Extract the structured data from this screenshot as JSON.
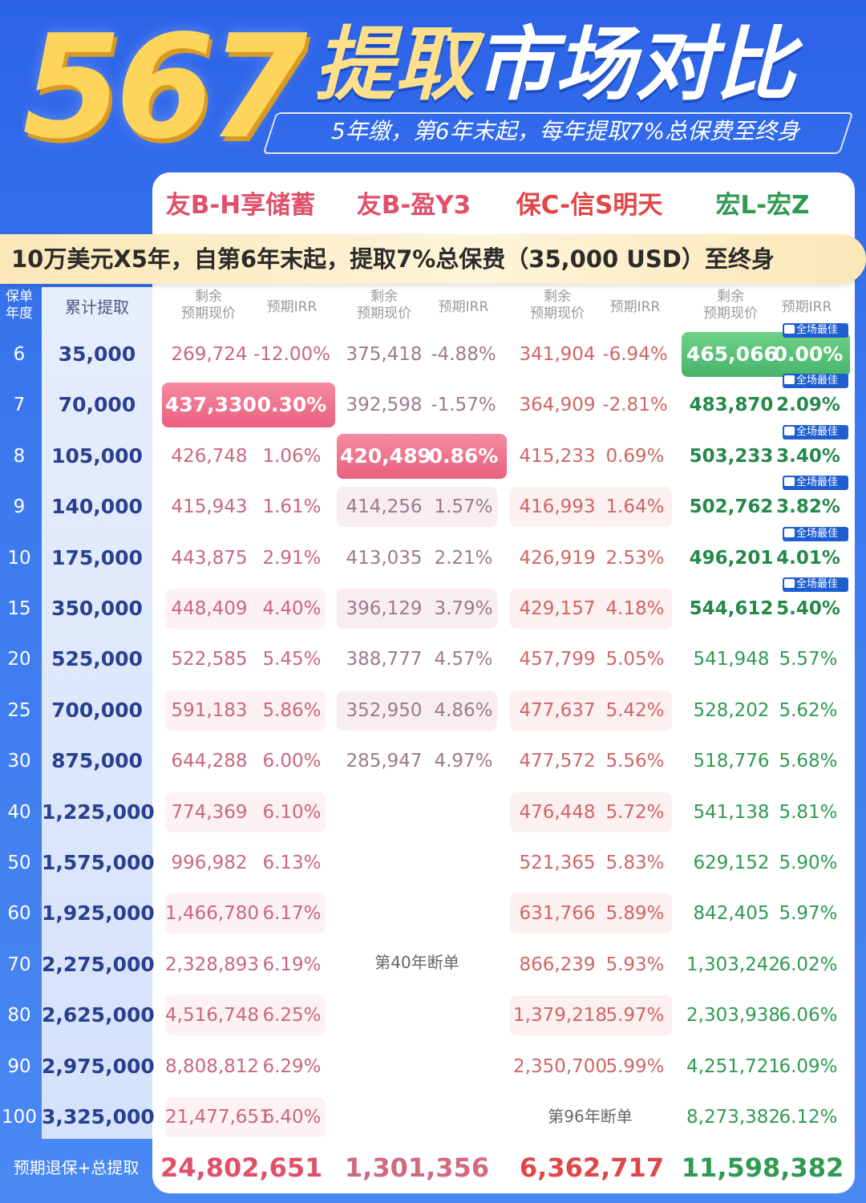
{
  "header": {
    "number": "567",
    "title_main": "提取",
    "title_rest": "市场对比",
    "subtitle": "5年缴，第6年末起，每年提取7%总保费至终身"
  },
  "products": [
    "友B-H享储蓄",
    "友B-盈Y3",
    "保C-信S明天",
    "宏L-宏Z"
  ],
  "banner": "10万美元X5年，自第6年末起，提取7%总保费（35,000 USD）至终身",
  "columns": {
    "year": "保单\n年度",
    "cumulative": "累计提取",
    "value": "剩余\n预期现价",
    "irr": "预期IRR"
  },
  "badge_label": "全场最佳",
  "rows": [
    {
      "year": "6",
      "cum": "35,000",
      "p1v": "269,724",
      "p1i": "-12.00%",
      "p2v": "375,418",
      "p2i": "-4.88%",
      "p3v": "341,904",
      "p3i": "-6.94%",
      "p4v": "465,066",
      "p4i": "0.00%"
    },
    {
      "year": "7",
      "cum": "70,000",
      "p1v": "437,330",
      "p1i": "0.30%",
      "p2v": "392,598",
      "p2i": "-1.57%",
      "p3v": "364,909",
      "p3i": "-2.81%",
      "p4v": "483,870",
      "p4i": "2.09%"
    },
    {
      "year": "8",
      "cum": "105,000",
      "p1v": "426,748",
      "p1i": "1.06%",
      "p2v": "420,489",
      "p2i": "0.86%",
      "p3v": "415,233",
      "p3i": "0.69%",
      "p4v": "503,233",
      "p4i": "3.40%"
    },
    {
      "year": "9",
      "cum": "140,000",
      "p1v": "415,943",
      "p1i": "1.61%",
      "p2v": "414,256",
      "p2i": "1.57%",
      "p3v": "416,993",
      "p3i": "1.64%",
      "p4v": "502,762",
      "p4i": "3.82%"
    },
    {
      "year": "10",
      "cum": "175,000",
      "p1v": "443,875",
      "p1i": "2.91%",
      "p2v": "413,035",
      "p2i": "2.21%",
      "p3v": "426,919",
      "p3i": "2.53%",
      "p4v": "496,201",
      "p4i": "4.01%"
    },
    {
      "year": "15",
      "cum": "350,000",
      "p1v": "448,409",
      "p1i": "4.40%",
      "p2v": "396,129",
      "p2i": "3.79%",
      "p3v": "429,157",
      "p3i": "4.18%",
      "p4v": "544,612",
      "p4i": "5.40%"
    },
    {
      "year": "20",
      "cum": "525,000",
      "p1v": "522,585",
      "p1i": "5.45%",
      "p2v": "388,777",
      "p2i": "4.57%",
      "p3v": "457,799",
      "p3i": "5.05%",
      "p4v": "541,948",
      "p4i": "5.57%"
    },
    {
      "year": "25",
      "cum": "700,000",
      "p1v": "591,183",
      "p1i": "5.86%",
      "p2v": "352,950",
      "p2i": "4.86%",
      "p3v": "477,637",
      "p3i": "5.42%",
      "p4v": "528,202",
      "p4i": "5.62%"
    },
    {
      "year": "30",
      "cum": "875,000",
      "p1v": "644,288",
      "p1i": "6.00%",
      "p2v": "285,947",
      "p2i": "4.97%",
      "p3v": "477,572",
      "p3i": "5.56%",
      "p4v": "518,776",
      "p4i": "5.68%"
    },
    {
      "year": "40",
      "cum": "1,225,000",
      "p1v": "774,369",
      "p1i": "6.10%",
      "p2v": "",
      "p2i": "",
      "p3v": "476,448",
      "p3i": "5.72%",
      "p4v": "541,138",
      "p4i": "5.81%"
    },
    {
      "year": "50",
      "cum": "1,575,000",
      "p1v": "996,982",
      "p1i": "6.13%",
      "p2v": "",
      "p2i": "",
      "p3v": "521,365",
      "p3i": "5.83%",
      "p4v": "629,152",
      "p4i": "5.90%"
    },
    {
      "year": "60",
      "cum": "1,925,000",
      "p1v": "1,466,780",
      "p1i": "6.17%",
      "p2v": "",
      "p2i": "",
      "p3v": "631,766",
      "p3i": "5.89%",
      "p4v": "842,405",
      "p4i": "5.97%"
    },
    {
      "year": "70",
      "cum": "2,275,000",
      "p1v": "2,328,893",
      "p1i": "6.19%",
      "p2v": "",
      "p2i": "",
      "p3v": "866,239",
      "p3i": "5.93%",
      "p4v": "1,303,242",
      "p4i": "6.02%"
    },
    {
      "year": "80",
      "cum": "2,625,000",
      "p1v": "4,516,748",
      "p1i": "6.25%",
      "p2v": "",
      "p2i": "",
      "p3v": "1,379,218",
      "p3i": "5.97%",
      "p4v": "2,303,938",
      "p4i": "6.06%"
    },
    {
      "year": "90",
      "cum": "2,975,000",
      "p1v": "8,808,812",
      "p1i": "6.29%",
      "p2v": "",
      "p2i": "",
      "p3v": "2,350,700",
      "p3i": "5.99%",
      "p4v": "4,251,721",
      "p4i": "6.09%"
    },
    {
      "year": "100",
      "cum": "3,325,000",
      "p1v": "21,477,651",
      "p1i": "6.40%",
      "p2v": "",
      "p2i": "",
      "p3v": "",
      "p3i": "",
      "p4v": "8,273,382",
      "p4i": "6.12%"
    }
  ],
  "notes": {
    "p2_lapse": "第40年断单",
    "p3_lapse": "第96年断单"
  },
  "totals": {
    "label": "预期退保+总提取",
    "p1": "24,802,651",
    "p2": "1,301,356",
    "p3": "6,362,717",
    "p4": "11,598,382"
  },
  "colors": {
    "background": "#2c63e8",
    "product_1": "#e0506a",
    "product_2": "#e0506a",
    "product_3": "#e04646",
    "product_4": "#2f9a52",
    "highlight_pink": "#ec6a85",
    "highlight_green": "#52bb72"
  }
}
